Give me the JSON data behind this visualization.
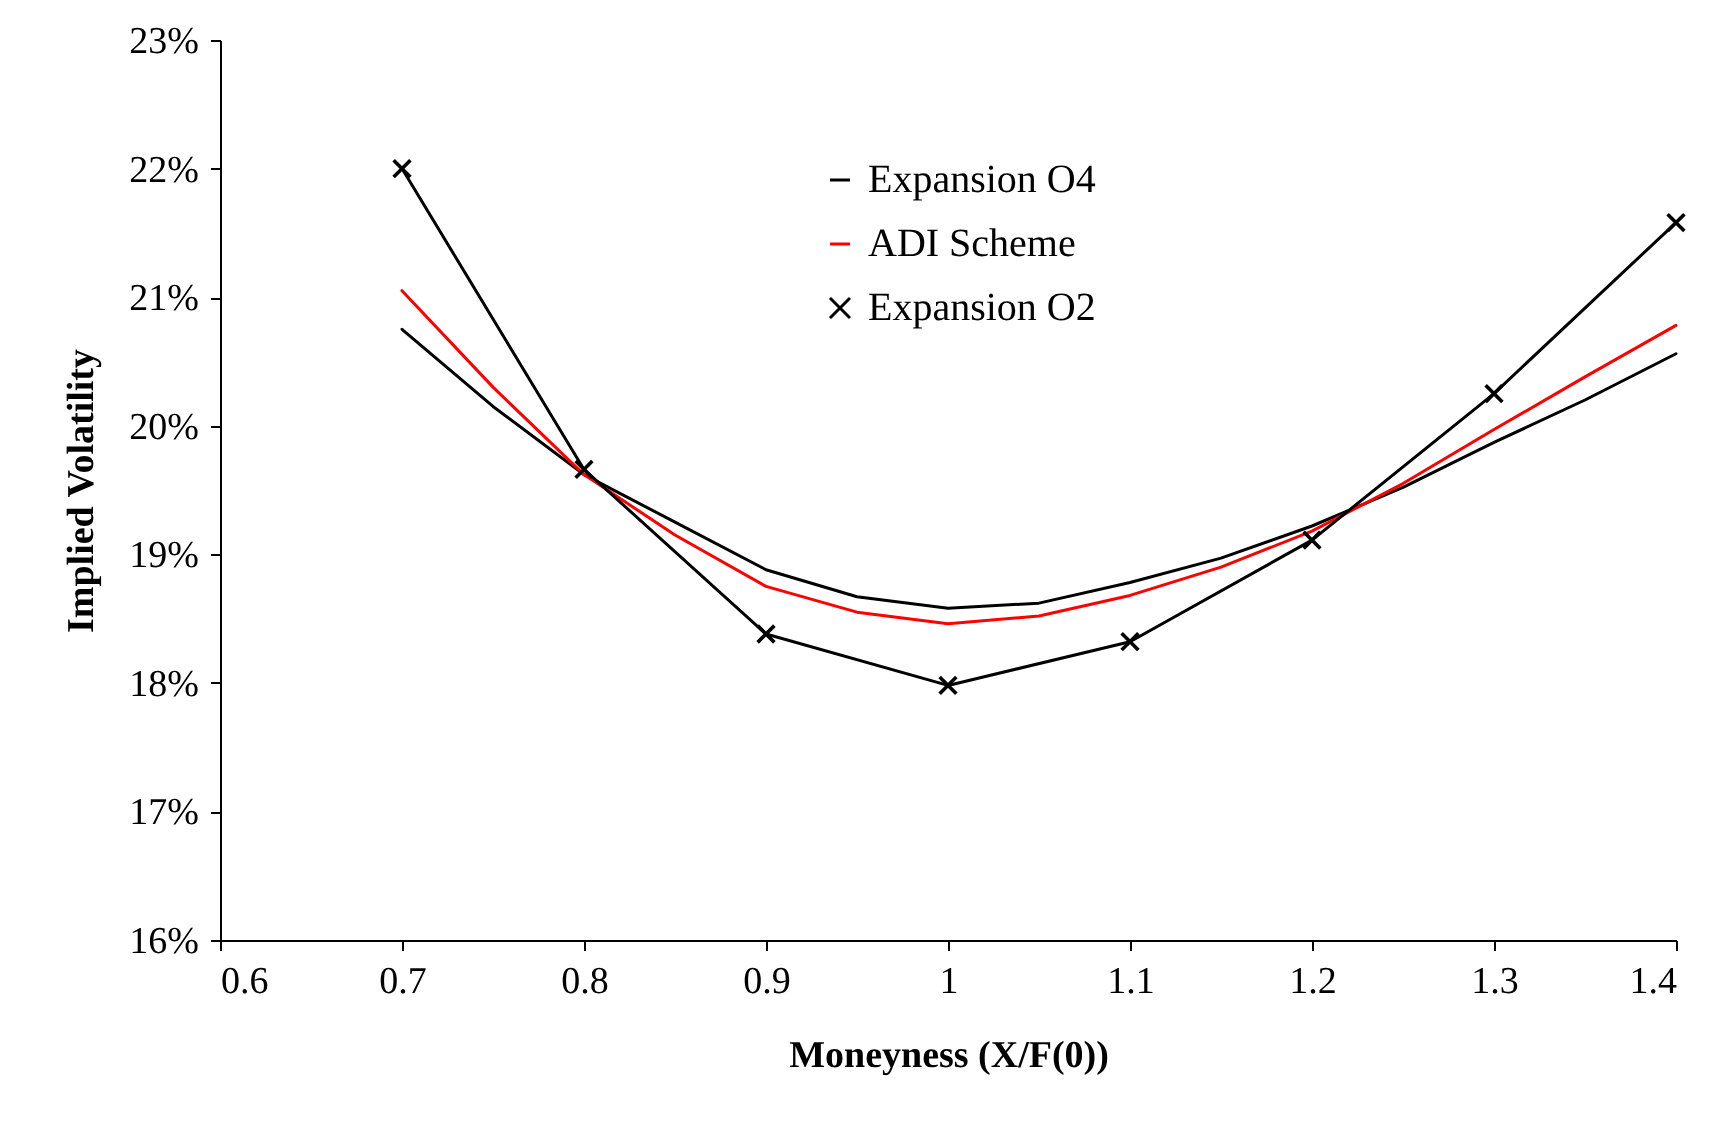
{
  "chart_data": {
    "type": "line",
    "xlabel": "Moneyness (X/F(0))",
    "ylabel": "Implied Volatility",
    "xlim": [
      0.6,
      1.4
    ],
    "xticks": [
      0.6,
      0.7,
      0.8,
      0.9,
      1,
      1.1,
      1.2,
      1.3,
      1.4
    ],
    "ylim": [
      16,
      23
    ],
    "yticks": [
      {
        "value": 16,
        "label": "16%"
      },
      {
        "value": 17,
        "label": "17%"
      },
      {
        "value": 18,
        "label": "18%"
      },
      {
        "value": 19,
        "label": "19%"
      },
      {
        "value": 20,
        "label": "20%"
      },
      {
        "value": 21,
        "label": "21%"
      },
      {
        "value": 22,
        "label": "22%"
      },
      {
        "value": 23,
        "label": "23%"
      }
    ],
    "grid": false,
    "legend": "top",
    "series": [
      {
        "name": "Expansion O4",
        "color": "#000000",
        "marker": "none",
        "x": [
          0.7,
          0.75,
          0.8,
          0.85,
          0.9,
          0.95,
          1.0,
          1.05,
          1.1,
          1.15,
          1.2,
          1.25,
          1.3,
          1.35,
          1.4
        ],
        "values": [
          20.75,
          20.15,
          19.62,
          19.25,
          18.88,
          18.67,
          18.58,
          18.62,
          18.78,
          18.97,
          19.22,
          19.52,
          19.87,
          20.2,
          20.56
        ]
      },
      {
        "name": "ADI Scheme",
        "color": "#ff0000",
        "marker": "none",
        "x": [
          0.7,
          0.75,
          0.8,
          0.85,
          0.9,
          0.95,
          1.0,
          1.05,
          1.1,
          1.15,
          1.2,
          1.25,
          1.3,
          1.35,
          1.4
        ],
        "values": [
          21.05,
          20.3,
          19.62,
          19.15,
          18.75,
          18.55,
          18.46,
          18.52,
          18.68,
          18.9,
          19.18,
          19.55,
          19.97,
          20.38,
          20.78
        ]
      },
      {
        "name": "Expansion O2",
        "color": "#000000",
        "marker": "cross",
        "x": [
          0.7,
          0.8,
          0.9,
          1.0,
          1.1,
          1.2,
          1.3,
          1.4
        ],
        "values": [
          22.0,
          19.66,
          18.38,
          17.98,
          18.32,
          19.11,
          20.25,
          21.58
        ]
      }
    ]
  }
}
